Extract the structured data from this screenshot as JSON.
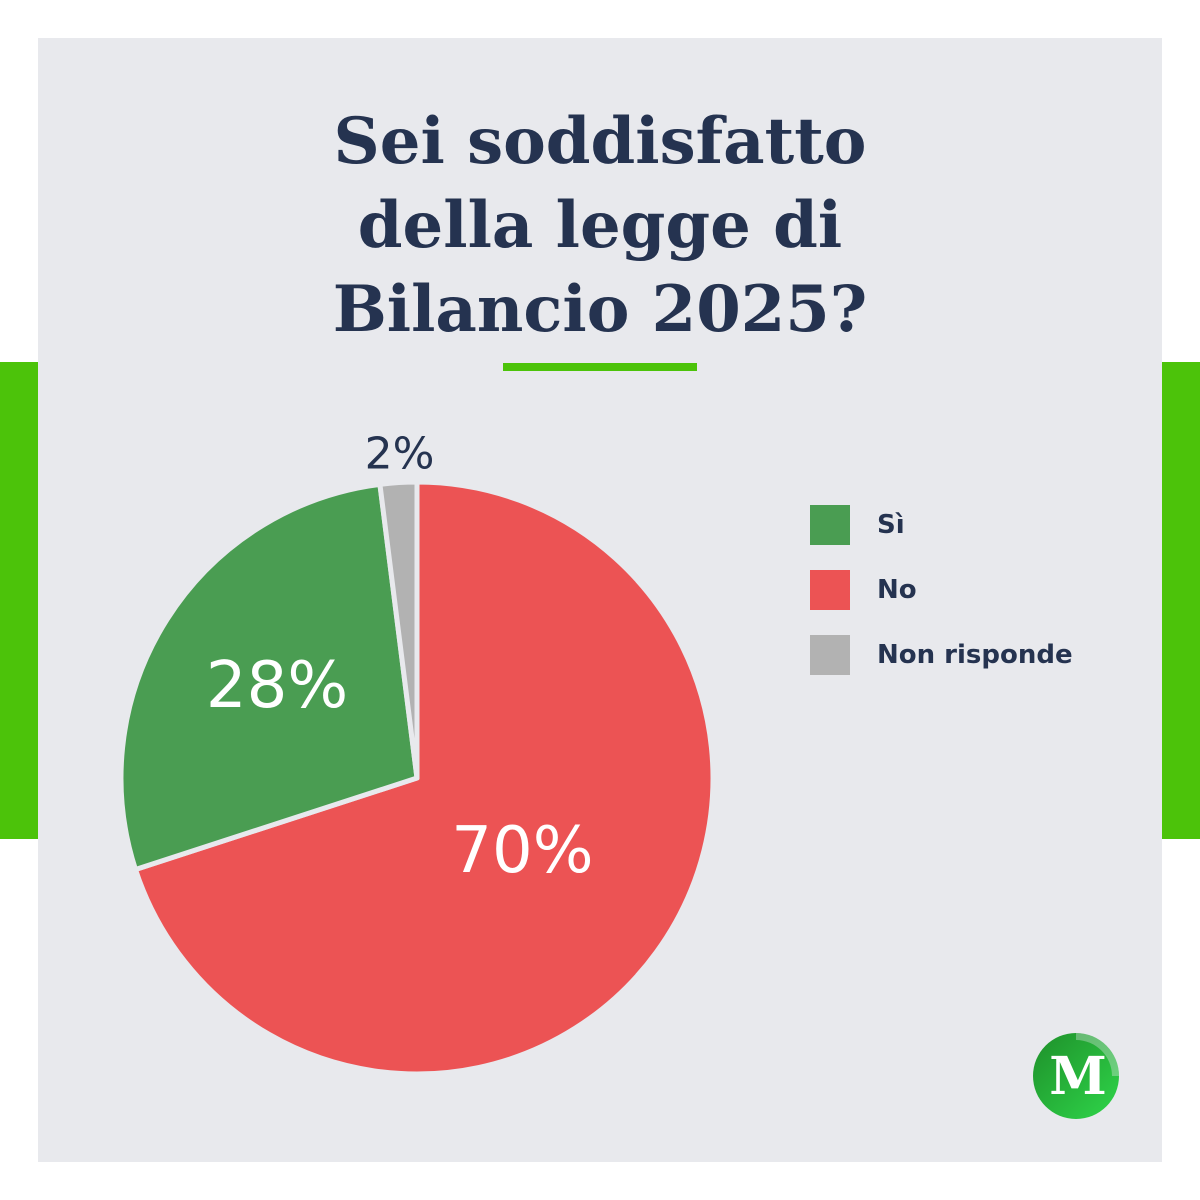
{
  "title": "Sei soddisfatto\ndella legge di\nBilancio 2025?",
  "colors": {
    "accent_green": "#4cc30a",
    "background": "#e8e9ed",
    "text": "#253350"
  },
  "chart_data": {
    "type": "pie",
    "start_angle": "12 o'clock",
    "direction": "clockwise",
    "slices": [
      {
        "label": "No",
        "value": 70,
        "display": "70%",
        "color": "#ec5354",
        "label_color": "#ffffff"
      },
      {
        "label": "Sì",
        "value": 28,
        "display": "28%",
        "color": "#4a9d52",
        "label_color": "#ffffff"
      },
      {
        "label": "Non risponde",
        "value": 2,
        "display": "2%",
        "color": "#b2b2b2",
        "label_color": "#253350",
        "label_outside": true
      }
    ],
    "legend": [
      "Sì",
      "No",
      "Non risponde"
    ],
    "legend_position": "right"
  },
  "legend": {
    "items": [
      {
        "label": "Sì",
        "color": "#4a9d52"
      },
      {
        "label": "No",
        "color": "#ec5354"
      },
      {
        "label": "Non risponde",
        "color": "#b2b2b2"
      }
    ]
  },
  "logo": {
    "letter": "M",
    "icon": "brand-logo-icon"
  }
}
